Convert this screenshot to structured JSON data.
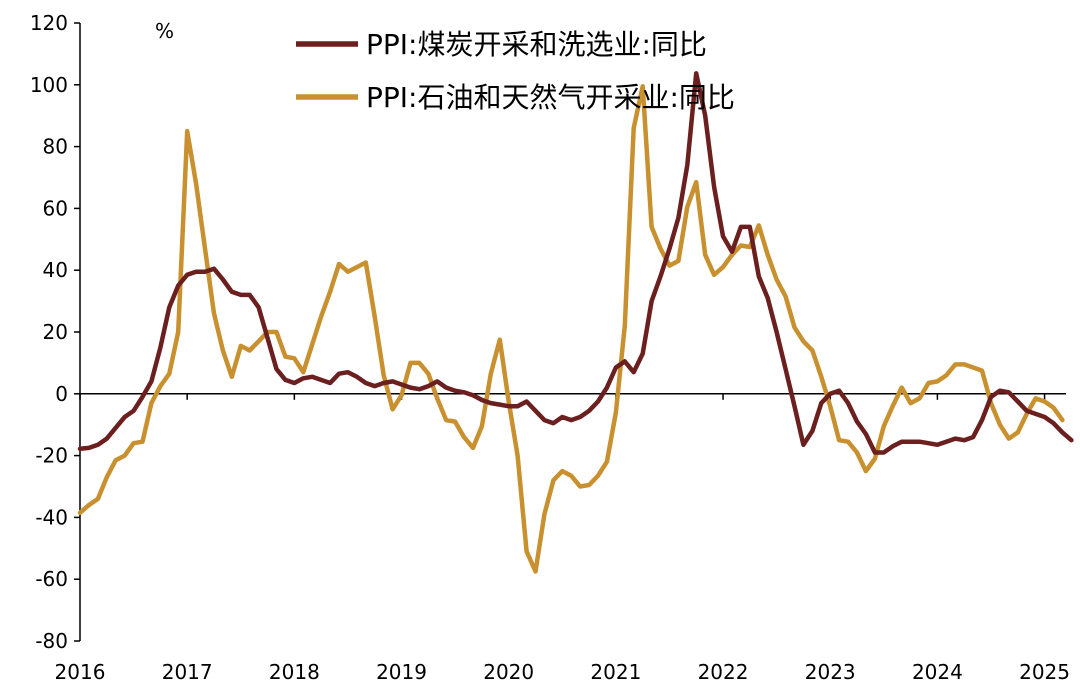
{
  "chart_data": {
    "type": "line",
    "unit": "%",
    "ylim": [
      -80,
      120
    ],
    "yticks": [
      -80,
      -60,
      -40,
      -20,
      0,
      20,
      40,
      60,
      80,
      100,
      120
    ],
    "xticks": [
      "2016",
      "2017",
      "2018",
      "2019",
      "2020",
      "2021",
      "2022",
      "2023",
      "2024",
      "2025"
    ],
    "grid": false,
    "legend_position": "top",
    "series": [
      {
        "name": "PPI:煤炭开采和洗选业:同比",
        "color": "#6b1f1f",
        "points": [
          [
            "2016-01",
            -17.8
          ],
          [
            "2016-02",
            -17.5
          ],
          [
            "2016-03",
            -16.5
          ],
          [
            "2016-04",
            -14.5
          ],
          [
            "2016-05",
            -11
          ],
          [
            "2016-06",
            -7.5
          ],
          [
            "2016-07",
            -5.5
          ],
          [
            "2016-08",
            -1
          ],
          [
            "2016-09",
            4
          ],
          [
            "2016-10",
            15
          ],
          [
            "2016-11",
            28
          ],
          [
            "2016-12",
            35
          ],
          [
            "2017-01",
            38.5
          ],
          [
            "2017-02",
            39.5
          ],
          [
            "2017-03",
            39.5
          ],
          [
            "2017-04",
            40.5
          ],
          [
            "2017-05",
            37
          ],
          [
            "2017-06",
            33
          ],
          [
            "2017-07",
            32
          ],
          [
            "2017-08",
            32
          ],
          [
            "2017-09",
            28
          ],
          [
            "2017-10",
            18
          ],
          [
            "2017-11",
            8
          ],
          [
            "2017-12",
            4.5
          ],
          [
            "2018-01",
            3.5
          ],
          [
            "2018-02",
            5
          ],
          [
            "2018-03",
            5.5
          ],
          [
            "2018-04",
            4.5
          ],
          [
            "2018-05",
            3.5
          ],
          [
            "2018-06",
            6.5
          ],
          [
            "2018-07",
            7
          ],
          [
            "2018-08",
            5.5
          ],
          [
            "2018-09",
            3.5
          ],
          [
            "2018-10",
            2.5
          ],
          [
            "2018-11",
            3.5
          ],
          [
            "2018-12",
            4
          ],
          [
            "2019-01",
            3
          ],
          [
            "2019-02",
            2
          ],
          [
            "2019-03",
            1.5
          ],
          [
            "2019-04",
            2.5
          ],
          [
            "2019-05",
            4
          ],
          [
            "2019-06",
            2
          ],
          [
            "2019-07",
            1
          ],
          [
            "2019-08",
            0.5
          ],
          [
            "2019-09",
            -0.5
          ],
          [
            "2019-10",
            -2
          ],
          [
            "2019-11",
            -3
          ],
          [
            "2019-12",
            -3.5
          ],
          [
            "2020-01",
            -4
          ],
          [
            "2020-02",
            -4
          ],
          [
            "2020-03",
            -2.5
          ],
          [
            "2020-04",
            -5.5
          ],
          [
            "2020-05",
            -8.5
          ],
          [
            "2020-06",
            -9.5
          ],
          [
            "2020-07",
            -7.5
          ],
          [
            "2020-08",
            -8.5
          ],
          [
            "2020-09",
            -7.5
          ],
          [
            "2020-10",
            -5.5
          ],
          [
            "2020-11",
            -2.5
          ],
          [
            "2020-12",
            2
          ],
          [
            "2021-01",
            8.5
          ],
          [
            "2021-02",
            10.5
          ],
          [
            "2021-03",
            7
          ],
          [
            "2021-04",
            13
          ],
          [
            "2021-05",
            30
          ],
          [
            "2021-06",
            38
          ],
          [
            "2021-07",
            47
          ],
          [
            "2021-08",
            57
          ],
          [
            "2021-09",
            74
          ],
          [
            "2021-10",
            103.7
          ],
          [
            "2021-11",
            90
          ],
          [
            "2021-12",
            67
          ],
          [
            "2022-01",
            51
          ],
          [
            "2022-02",
            46
          ],
          [
            "2022-03",
            54
          ],
          [
            "2022-04",
            54
          ],
          [
            "2022-05",
            38
          ],
          [
            "2022-06",
            31
          ],
          [
            "2022-07",
            20
          ],
          [
            "2022-08",
            8
          ],
          [
            "2022-09",
            -4
          ],
          [
            "2022-10",
            -16.5
          ],
          [
            "2022-11",
            -12
          ],
          [
            "2022-12",
            -3
          ],
          [
            "2023-01",
            0
          ],
          [
            "2023-02",
            1
          ],
          [
            "2023-03",
            -3
          ],
          [
            "2023-04",
            -9
          ],
          [
            "2023-05",
            -13
          ],
          [
            "2023-06",
            -19
          ],
          [
            "2023-07",
            -19
          ],
          [
            "2023-08",
            -17
          ],
          [
            "2023-09",
            -15.5
          ],
          [
            "2023-10",
            -15.5
          ],
          [
            "2023-11",
            -15.5
          ],
          [
            "2023-12",
            -16
          ],
          [
            "2024-01",
            -16.5
          ],
          [
            "2024-02",
            -15.5
          ],
          [
            "2024-03",
            -14.5
          ],
          [
            "2024-04",
            -15
          ],
          [
            "2024-05",
            -14
          ],
          [
            "2024-06",
            -8.5
          ],
          [
            "2024-07",
            -1
          ],
          [
            "2024-08",
            1
          ],
          [
            "2024-09",
            0.5
          ],
          [
            "2024-10",
            -2.5
          ],
          [
            "2024-11",
            -5.5
          ],
          [
            "2024-12",
            -6.5
          ],
          [
            "2025-01",
            -7.5
          ],
          [
            "2025-02",
            -9.5
          ],
          [
            "2025-03",
            -12.5
          ],
          [
            "2025-04",
            -15
          ]
        ]
      },
      {
        "name": "PPI:石油和天然气开采业:同比",
        "color": "#c8902e",
        "points": [
          [
            "2016-01",
            -38.5
          ],
          [
            "2016-02",
            -36
          ],
          [
            "2016-03",
            -34
          ],
          [
            "2016-04",
            -27
          ],
          [
            "2016-05",
            -21.5
          ],
          [
            "2016-06",
            -20
          ],
          [
            "2016-07",
            -16
          ],
          [
            "2016-08",
            -15.5
          ],
          [
            "2016-09",
            -3
          ],
          [
            "2016-10",
            2.5
          ],
          [
            "2016-11",
            6.5
          ],
          [
            "2016-12",
            20
          ],
          [
            "2017-01",
            85
          ],
          [
            "2017-02",
            68
          ],
          [
            "2017-03",
            47
          ],
          [
            "2017-04",
            26
          ],
          [
            "2017-05",
            14
          ],
          [
            "2017-06",
            5.5
          ],
          [
            "2017-07",
            15.5
          ],
          [
            "2017-08",
            14
          ],
          [
            "2017-09",
            17
          ],
          [
            "2017-10",
            20
          ],
          [
            "2017-11",
            20
          ],
          [
            "2017-12",
            12
          ],
          [
            "2018-01",
            11.5
          ],
          [
            "2018-02",
            7
          ],
          [
            "2018-03",
            16
          ],
          [
            "2018-04",
            25
          ],
          [
            "2018-05",
            33
          ],
          [
            "2018-06",
            42
          ],
          [
            "2018-07",
            39.5
          ],
          [
            "2018-08",
            41
          ],
          [
            "2018-09",
            42.5
          ],
          [
            "2018-10",
            25
          ],
          [
            "2018-11",
            6
          ],
          [
            "2018-12",
            -5
          ],
          [
            "2019-01",
            -0.5
          ],
          [
            "2019-02",
            10
          ],
          [
            "2019-03",
            10
          ],
          [
            "2019-04",
            6.5
          ],
          [
            "2019-05",
            -1.5
          ],
          [
            "2019-06",
            -8.5
          ],
          [
            "2019-07",
            -9
          ],
          [
            "2019-08",
            -14
          ],
          [
            "2019-09",
            -17.5
          ],
          [
            "2019-10",
            -10.5
          ],
          [
            "2019-11",
            6.5
          ],
          [
            "2019-12",
            17.5
          ],
          [
            "2020-01",
            -2.5
          ],
          [
            "2020-02",
            -20
          ],
          [
            "2020-03",
            -51
          ],
          [
            "2020-04",
            -57.5
          ],
          [
            "2020-05",
            -39
          ],
          [
            "2020-06",
            -28
          ],
          [
            "2020-07",
            -25
          ],
          [
            "2020-08",
            -26.5
          ],
          [
            "2020-09",
            -30
          ],
          [
            "2020-10",
            -29.5
          ],
          [
            "2020-11",
            -26.5
          ],
          [
            "2020-12",
            -22
          ],
          [
            "2021-01",
            -6
          ],
          [
            "2021-02",
            22
          ],
          [
            "2021-03",
            86
          ],
          [
            "2021-04",
            99.5
          ],
          [
            "2021-05",
            54
          ],
          [
            "2021-06",
            47
          ],
          [
            "2021-07",
            41.5
          ],
          [
            "2021-08",
            43
          ],
          [
            "2021-09",
            60.5
          ],
          [
            "2021-10",
            68.5
          ],
          [
            "2021-11",
            45
          ],
          [
            "2021-12",
            38.5
          ],
          [
            "2022-01",
            41
          ],
          [
            "2022-02",
            45
          ],
          [
            "2022-03",
            48
          ],
          [
            "2022-04",
            47.5
          ],
          [
            "2022-05",
            54.5
          ],
          [
            "2022-06",
            45
          ],
          [
            "2022-07",
            37
          ],
          [
            "2022-08",
            31.5
          ],
          [
            "2022-09",
            21.5
          ],
          [
            "2022-10",
            17
          ],
          [
            "2022-11",
            14
          ],
          [
            "2022-12",
            5.5
          ],
          [
            "2023-01",
            -4
          ],
          [
            "2023-02",
            -15
          ],
          [
            "2023-03",
            -15.5
          ],
          [
            "2023-04",
            -19
          ],
          [
            "2023-05",
            -25
          ],
          [
            "2023-06",
            -21
          ],
          [
            "2023-07",
            -10.5
          ],
          [
            "2023-08",
            -4
          ],
          [
            "2023-09",
            2
          ],
          [
            "2023-10",
            -3
          ],
          [
            "2023-11",
            -1.5
          ],
          [
            "2023-12",
            3.5
          ],
          [
            "2024-01",
            4
          ],
          [
            "2024-02",
            6
          ],
          [
            "2024-03",
            9.5
          ],
          [
            "2024-04",
            9.5
          ],
          [
            "2024-05",
            8.5
          ],
          [
            "2024-06",
            7.5
          ],
          [
            "2024-07",
            -3
          ],
          [
            "2024-08",
            -10
          ],
          [
            "2024-09",
            -14.5
          ],
          [
            "2024-10",
            -12.5
          ],
          [
            "2024-11",
            -6.5
          ],
          [
            "2024-12",
            -1.5
          ],
          [
            "2025-01",
            -2.5
          ],
          [
            "2025-02",
            -4.5
          ],
          [
            "2025-03",
            -8.5
          ]
        ]
      }
    ]
  }
}
